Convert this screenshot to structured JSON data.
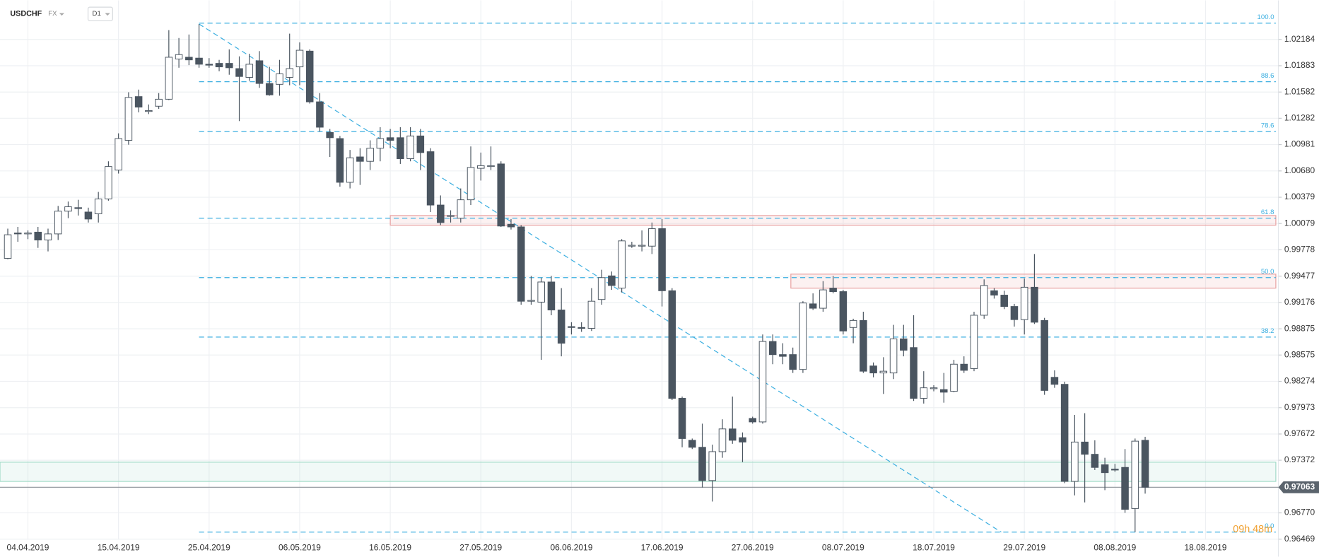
{
  "chart_data": {
    "type": "candlestick",
    "symbol": "USDCHF",
    "market": "FX",
    "timeframe": "D1",
    "x_labels": [
      "04.04.2019",
      "15.04.2019",
      "25.04.2019",
      "06.05.2019",
      "16.05.2019",
      "27.05.2019",
      "06.06.2019",
      "17.06.2019",
      "27.06.2019",
      "08.07.2019",
      "18.07.2019",
      "29.07.2019",
      "08.08.2019",
      "18.08.2019"
    ],
    "ohlc": [
      [
        0.9968,
        1.0002,
        0.9967,
        0.9995
      ],
      [
        0.9997,
        1.0004,
        0.9987,
        0.9996
      ],
      [
        0.9996,
        1.0,
        0.999,
        0.9997
      ],
      [
        0.9998,
        1.0004,
        0.998,
        0.9989
      ],
      [
        0.9989,
        1.0002,
        0.9976,
        0.9996
      ],
      [
        0.9996,
        1.0028,
        0.9989,
        1.0022
      ],
      [
        1.0022,
        1.0033,
        1.0014,
        1.0027
      ],
      [
        1.0026,
        1.0035,
        1.0017,
        1.0025
      ],
      [
        1.0021,
        1.0026,
        1.0009,
        1.0013
      ],
      [
        1.0019,
        1.0044,
        1.0009,
        1.0036
      ],
      [
        1.0036,
        1.0079,
        1.0034,
        1.0073
      ],
      [
        1.0069,
        1.0111,
        1.0065,
        1.0105
      ],
      [
        1.0103,
        1.0158,
        1.0098,
        1.0152
      ],
      [
        1.0153,
        1.0161,
        1.0135,
        1.0141
      ],
      [
        1.0136,
        1.0144,
        1.0133,
        1.0137
      ],
      [
        1.0142,
        1.0157,
        1.0139,
        1.015
      ],
      [
        1.015,
        1.0229,
        1.0149,
        1.0198
      ],
      [
        1.0196,
        1.022,
        1.0186,
        1.0201
      ],
      [
        1.0198,
        1.0224,
        1.0189,
        1.0195
      ],
      [
        1.0197,
        1.0236,
        1.0186,
        1.019
      ],
      [
        1.019,
        1.0197,
        1.0186,
        1.0189
      ],
      [
        1.0191,
        1.0195,
        1.0182,
        1.0187
      ],
      [
        1.0191,
        1.0207,
        1.0178,
        1.0186
      ],
      [
        1.0185,
        1.0199,
        1.0125,
        1.0176
      ],
      [
        1.0175,
        1.0202,
        1.0171,
        1.019
      ],
      [
        1.0194,
        1.0205,
        1.0163,
        1.0168
      ],
      [
        1.0168,
        1.0187,
        1.0154,
        1.0155
      ],
      [
        1.0167,
        1.0195,
        1.0154,
        1.0179
      ],
      [
        1.0175,
        1.0225,
        1.0166,
        1.0185
      ],
      [
        1.0187,
        1.0215,
        1.0166,
        1.0206
      ],
      [
        1.0205,
        1.0207,
        1.0145,
        1.0147
      ],
      [
        1.0147,
        1.0157,
        1.0113,
        1.0118
      ],
      [
        1.0112,
        1.0116,
        1.0084,
        1.0106
      ],
      [
        1.0105,
        1.0108,
        1.005,
        1.0055
      ],
      [
        1.0055,
        1.0092,
        1.0048,
        1.0083
      ],
      [
        1.0084,
        1.0094,
        1.0052,
        1.0079
      ],
      [
        1.0079,
        1.0103,
        1.0069,
        1.0094
      ],
      [
        1.0094,
        1.0118,
        1.0079,
        1.0105
      ],
      [
        1.0106,
        1.0116,
        1.0094,
        1.0103
      ],
      [
        1.0106,
        1.0118,
        1.0076,
        1.0082
      ],
      [
        1.0082,
        1.0118,
        1.0079,
        1.0108
      ],
      [
        1.0108,
        1.0116,
        1.0069,
        1.0089
      ],
      [
        1.009,
        1.0094,
        1.0021,
        1.0029
      ],
      [
        1.0029,
        1.004,
        1.0006,
        1.0009
      ],
      [
        1.0016,
        1.0023,
        1.0009,
        1.0017
      ],
      [
        1.0014,
        1.0048,
        1.0009,
        1.0035
      ],
      [
        1.0035,
        1.0096,
        1.0029,
        1.0072
      ],
      [
        1.0071,
        1.0089,
        1.0057,
        1.0074
      ],
      [
        1.0073,
        1.0096,
        1.0069,
        1.0074
      ],
      [
        1.0076,
        1.0079,
        1.0004,
        1.0005
      ],
      [
        1.0007,
        1.0013,
        1.0001,
        1.0004
      ],
      [
        1.0004,
        1.0006,
        0.9915,
        0.9919
      ],
      [
        0.9919,
        0.9948,
        0.9915,
        0.992
      ],
      [
        0.9918,
        0.9946,
        0.9852,
        0.9941
      ],
      [
        0.9941,
        0.9948,
        0.9903,
        0.9909
      ],
      [
        0.9909,
        0.9934,
        0.9856,
        0.9871
      ],
      [
        0.989,
        0.9895,
        0.9881,
        0.9889
      ],
      [
        0.9889,
        0.9895,
        0.9884,
        0.9888
      ],
      [
        0.9888,
        0.9934,
        0.9885,
        0.9919
      ],
      [
        0.9921,
        0.9955,
        0.9915,
        0.9946
      ],
      [
        0.9948,
        0.9953,
        0.9932,
        0.9937
      ],
      [
        0.9934,
        0.999,
        0.9929,
        0.9988
      ],
      [
        0.9982,
        0.9987,
        0.998,
        0.9983
      ],
      [
        0.9982,
        1.0,
        0.9976,
        0.9983
      ],
      [
        0.9982,
        1.0009,
        0.9973,
        1.0002
      ],
      [
        1.0002,
        1.0013,
        0.9913,
        0.9931
      ],
      [
        0.9931,
        0.9934,
        0.9806,
        0.9808
      ],
      [
        0.9808,
        0.981,
        0.9752,
        0.9762
      ],
      [
        0.976,
        0.9762,
        0.975,
        0.9752
      ],
      [
        0.9752,
        0.9779,
        0.9706,
        0.9714
      ],
      [
        0.9714,
        0.9755,
        0.969,
        0.9747
      ],
      [
        0.9747,
        0.9784,
        0.974,
        0.9773
      ],
      [
        0.9773,
        0.981,
        0.9756,
        0.976
      ],
      [
        0.9763,
        0.9769,
        0.9735,
        0.9758
      ],
      [
        0.9785,
        0.9787,
        0.9779,
        0.9781
      ],
      [
        0.9781,
        0.9881,
        0.9779,
        0.9873
      ],
      [
        0.9873,
        0.9881,
        0.9847,
        0.9858
      ],
      [
        0.9858,
        0.9871,
        0.9847,
        0.9856
      ],
      [
        0.9858,
        0.9866,
        0.9837,
        0.9841
      ],
      [
        0.9841,
        0.9919,
        0.9837,
        0.9917
      ],
      [
        0.9916,
        0.9928,
        0.9909,
        0.9911
      ],
      [
        0.9911,
        0.9942,
        0.9907,
        0.9932
      ],
      [
        0.9934,
        0.9948,
        0.9928,
        0.993
      ],
      [
        0.993,
        0.9932,
        0.9881,
        0.9885
      ],
      [
        0.9889,
        0.9899,
        0.9871,
        0.9897
      ],
      [
        0.9897,
        0.9907,
        0.9837,
        0.9839
      ],
      [
        0.9845,
        0.9849,
        0.9832,
        0.9837
      ],
      [
        0.9837,
        0.9855,
        0.9813,
        0.9839
      ],
      [
        0.9837,
        0.9892,
        0.983,
        0.9876
      ],
      [
        0.9876,
        0.9892,
        0.9856,
        0.9863
      ],
      [
        0.9866,
        0.9903,
        0.9805,
        0.9808
      ],
      [
        0.9808,
        0.9839,
        0.9802,
        0.982
      ],
      [
        0.9819,
        0.9823,
        0.9816,
        0.982
      ],
      [
        0.9818,
        0.9837,
        0.9803,
        0.9815
      ],
      [
        0.9816,
        0.9852,
        0.9815,
        0.9847
      ],
      [
        0.9847,
        0.9856,
        0.9837,
        0.984
      ],
      [
        0.9842,
        0.9907,
        0.9839,
        0.9903
      ],
      [
        0.9903,
        0.9944,
        0.9899,
        0.9937
      ],
      [
        0.9931,
        0.9934,
        0.9922,
        0.9926
      ],
      [
        0.9926,
        0.9931,
        0.991,
        0.9913
      ],
      [
        0.9913,
        0.9916,
        0.989,
        0.9898
      ],
      [
        0.9898,
        0.9945,
        0.9881,
        0.9935
      ],
      [
        0.9935,
        0.9973,
        0.9893,
        0.9895
      ],
      [
        0.9897,
        0.99,
        0.9812,
        0.9817
      ],
      [
        0.9832,
        0.984,
        0.982,
        0.9824
      ],
      [
        0.9824,
        0.9827,
        0.9711,
        0.9713
      ],
      [
        0.9713,
        0.9789,
        0.9697,
        0.9758
      ],
      [
        0.9758,
        0.9791,
        0.9689,
        0.9744
      ],
      [
        0.9744,
        0.976,
        0.9726,
        0.9729
      ],
      [
        0.9732,
        0.974,
        0.9703,
        0.9723
      ],
      [
        0.9727,
        0.9733,
        0.9724,
        0.9726
      ],
      [
        0.9729,
        0.975,
        0.9677,
        0.9681
      ],
      [
        0.9682,
        0.9762,
        0.9655,
        0.9759
      ],
      [
        0.976,
        0.9764,
        0.9699,
        0.97063
      ]
    ],
    "up_color": "#ffffff",
    "down_color": "#4a5560",
    "ylim": [
      0.9627,
      1.0263
    ],
    "yticks": [
      1.02184,
      1.01883,
      1.01582,
      1.01282,
      1.00981,
      {
        "value": 1.0068,
        "label": "1.00680"
      },
      1.00379,
      1.00079,
      0.99778,
      0.99477,
      0.99176,
      0.98875,
      0.98575,
      0.98274,
      0.97973,
      0.97672,
      0.97372,
      {
        "value": 0.9677,
        "label": "0.96770"
      },
      0.96469
    ],
    "grid": true,
    "fib_levels": [
      {
        "label": "100.0",
        "price": 1.0237
      },
      {
        "label": "88.6",
        "price": 1.017
      },
      {
        "label": "78.6",
        "price": 1.0113
      },
      {
        "label": "61.8",
        "price": 1.0014
      },
      {
        "label": "50.0",
        "price": 0.9946
      },
      {
        "label": "38.2",
        "price": 0.9878
      },
      {
        "label": "0.0",
        "price": 0.9655
      }
    ],
    "fib_color": "#3aaee0",
    "trendline": {
      "from": 1.0236,
      "to": 0.9655
    },
    "zones": [
      {
        "from": 1.0006,
        "to": 1.0017,
        "color": "#e8a0a0"
      },
      {
        "from": 0.9934,
        "to": 0.995,
        "color": "#e8a0a0"
      },
      {
        "from": 0.9713,
        "to": 0.9735,
        "color": "#9fd9c6"
      }
    ],
    "last_price": 0.97063,
    "countdown": "09h 48m"
  }
}
